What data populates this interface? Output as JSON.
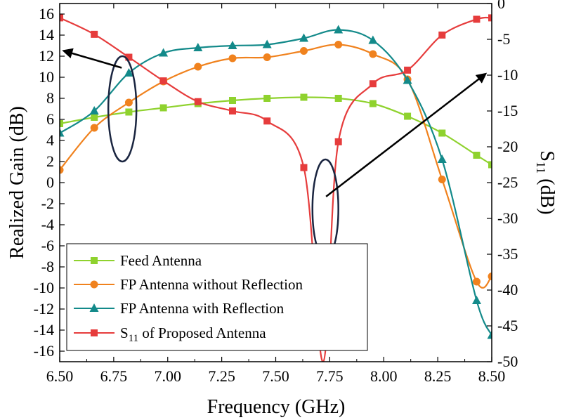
{
  "chart_data": {
    "type": "line",
    "xlabel": "Frequency (GHz)",
    "ylabel_left": "Realized Gain (dB)",
    "ylabel_right_main": "S",
    "ylabel_right_sub": "11",
    "ylabel_right_tail": " (dB)",
    "xlim": [
      6.5,
      8.5
    ],
    "ylim_left": [
      -17,
      17
    ],
    "ylim_right": [
      -50,
      0
    ],
    "x_ticks": [
      6.5,
      6.75,
      7.0,
      7.25,
      7.5,
      7.75,
      8.0,
      8.25,
      8.5
    ],
    "x_tick_labels": [
      "6.50",
      "6.75",
      "7.00",
      "7.25",
      "7.50",
      "7.75",
      "8.00",
      "8.25",
      "8.50"
    ],
    "y_left_ticks": [
      16,
      14,
      12,
      10,
      8,
      6,
      4,
      2,
      0,
      -2,
      -4,
      -6,
      -8,
      -10,
      -12,
      -14,
      -16
    ],
    "y_left_tick_labels": [
      "16",
      "14",
      "12",
      "10",
      "8",
      "6",
      "4",
      "2",
      "0",
      "-2",
      "-4",
      "-6",
      "-8",
      "-10",
      "-12",
      "-14",
      "-16"
    ],
    "y_right_ticks": [
      0,
      -5,
      -10,
      -15,
      -20,
      -25,
      -30,
      -35,
      -40,
      -45,
      -50
    ],
    "y_right_tick_labels": [
      "0",
      "-5",
      "-10",
      "-15",
      "-20",
      "-25",
      "-30",
      "-35",
      "-40",
      "-45",
      "-50"
    ],
    "legend_placement": "bottom-left",
    "series": [
      {
        "name": "Feed Antenna",
        "axis": "left",
        "color": "#8fd22e",
        "marker": "square",
        "x": [
          6.5,
          6.66,
          6.82,
          6.98,
          7.14,
          7.3,
          7.46,
          7.63,
          7.79,
          7.95,
          8.11,
          8.27,
          8.43,
          8.5
        ],
        "y": [
          5.6,
          6.2,
          6.7,
          7.1,
          7.5,
          7.8,
          8.0,
          8.1,
          8.0,
          7.5,
          6.3,
          4.7,
          2.6,
          1.7
        ]
      },
      {
        "name": "FP Antenna without Reflection",
        "axis": "left",
        "color": "#f0821e",
        "marker": "circle",
        "x": [
          6.5,
          6.66,
          6.82,
          6.98,
          7.14,
          7.3,
          7.46,
          7.63,
          7.79,
          7.95,
          8.11,
          8.27,
          8.43,
          8.5
        ],
        "y": [
          1.2,
          5.2,
          7.6,
          9.6,
          11.0,
          11.8,
          11.9,
          12.5,
          13.1,
          12.2,
          9.8,
          0.3,
          -9.4,
          -8.9
        ]
      },
      {
        "name": "FP Antenna with Reflection",
        "axis": "left",
        "color": "#138a8a",
        "marker": "triangle",
        "x": [
          6.5,
          6.66,
          6.82,
          6.98,
          7.14,
          7.3,
          7.46,
          7.63,
          7.79,
          7.95,
          8.11,
          8.27,
          8.43,
          8.5
        ],
        "y": [
          4.7,
          6.8,
          10.4,
          12.3,
          12.8,
          13.0,
          13.1,
          13.7,
          14.5,
          13.5,
          9.7,
          2.2,
          -11.2,
          -14.5
        ]
      },
      {
        "name_main": "S",
        "name_sub": "11",
        "name_tail": " of Proposed Antenna",
        "axis": "right",
        "color": "#e63c3c",
        "marker": "square",
        "x": [
          6.5,
          6.66,
          6.82,
          6.98,
          7.14,
          7.3,
          7.46,
          7.63,
          7.72,
          7.79,
          7.95,
          8.11,
          8.27,
          8.43,
          8.5
        ],
        "y": [
          -2.0,
          -4.3,
          -7.5,
          -10.8,
          -13.7,
          -15.0,
          -16.4,
          -22.9,
          -50.0,
          -19.3,
          -11.2,
          -9.3,
          -4.4,
          -2.2,
          -2.0
        ]
      }
    ],
    "annotations": [
      {
        "type": "ellipse",
        "note": "points left axis",
        "cx": 6.79,
        "cy_left": 7.0,
        "rx_x": 0.065,
        "ry_left": 5.0,
        "arrow_to": {
          "x": 6.52,
          "y_left": 12.5
        }
      },
      {
        "type": "ellipse",
        "note": "points right axis",
        "cx": 7.73,
        "cy_left": -2.5,
        "rx_x": 0.06,
        "ry_left": 4.7,
        "arrow_to": {
          "x": 8.47,
          "y_left": 10.3
        }
      }
    ]
  }
}
